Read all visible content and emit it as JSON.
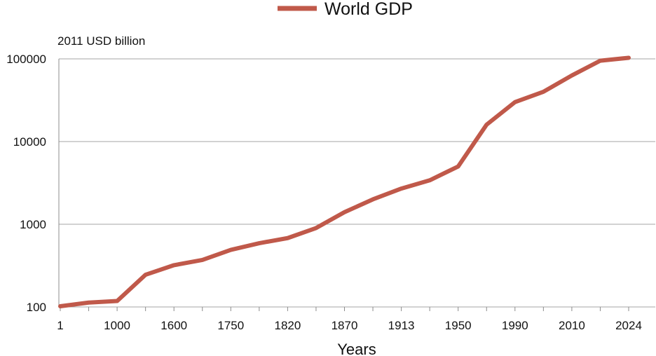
{
  "chart_data": {
    "type": "line",
    "xlabel": "Years",
    "ylabel": "2011 USD billion",
    "y_scale": "log",
    "ylim": [
      100,
      100000
    ],
    "y_ticks": [
      "100",
      "1000",
      "10000",
      "100000"
    ],
    "y_tick_values": [
      100,
      1000,
      10000,
      100000
    ],
    "categories": [
      "1",
      "",
      "1000",
      "",
      "1600",
      "",
      "1750",
      "",
      "1820",
      "",
      "1870",
      "",
      "1913",
      "",
      "1950",
      "",
      "1990",
      "",
      "2010",
      "",
      "2024"
    ],
    "grid": "horizontal",
    "legend_position": "top-center",
    "series": [
      {
        "name": "World GDP",
        "color": "#c0594a",
        "values": [
          102,
          113,
          118,
          245,
          320,
          370,
          490,
          590,
          680,
          900,
          1400,
          2000,
          2700,
          3400,
          5000,
          16000,
          30000,
          40000,
          63000,
          95000,
          103000
        ]
      }
    ]
  }
}
